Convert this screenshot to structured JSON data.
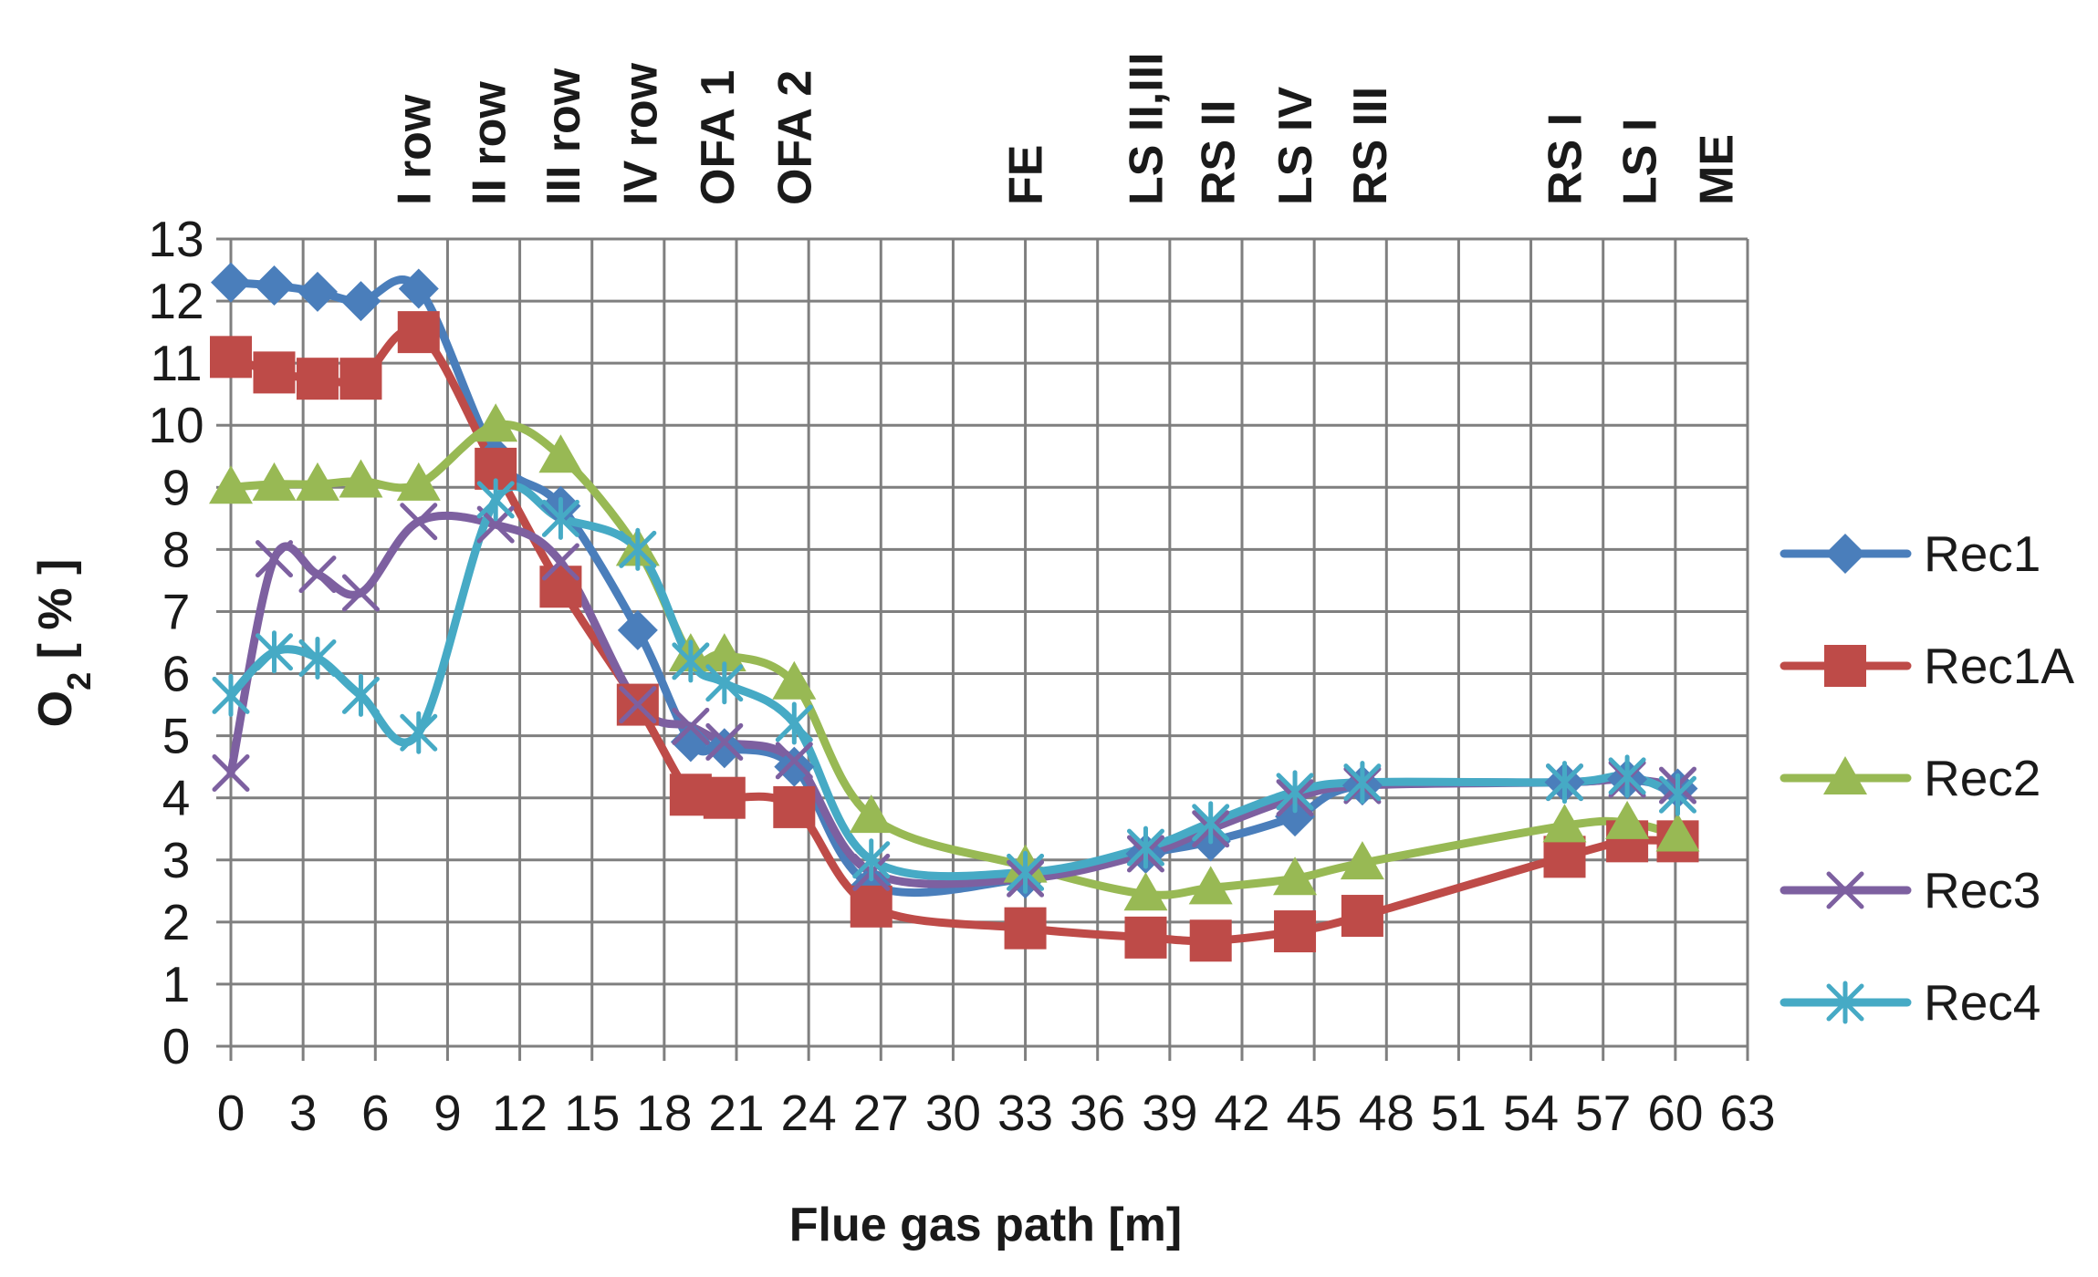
{
  "chart_data": {
    "type": "line",
    "title": "",
    "xlabel": "Flue gas path [m]",
    "ylabel": "O2 [ % ]",
    "ylabel_main": "O",
    "ylabel_sub": "2",
    "ylabel_rest": " [ % ]",
    "xlim": [
      0,
      63
    ],
    "ylim": [
      0,
      13
    ],
    "x_ticks": [
      0,
      3,
      6,
      9,
      12,
      15,
      18,
      21,
      24,
      27,
      30,
      33,
      36,
      39,
      42,
      45,
      48,
      51,
      54,
      57,
      60,
      63
    ],
    "y_ticks": [
      0,
      1,
      2,
      3,
      4,
      5,
      6,
      7,
      8,
      9,
      10,
      11,
      12,
      13
    ],
    "grid": true,
    "legend_position": "right",
    "annotations": [
      {
        "label": "I row",
        "x": 7.6
      },
      {
        "label": "II row",
        "x": 10.7
      },
      {
        "label": "III row",
        "x": 13.8
      },
      {
        "label": "IV row",
        "x": 17.0
      },
      {
        "label": "OFA 1",
        "x": 20.2
      },
      {
        "label": "OFA 2",
        "x": 23.4
      },
      {
        "label": "FE",
        "x": 33.0
      },
      {
        "label": "LS II,III",
        "x": 38.0
      },
      {
        "label": "RS II",
        "x": 41.0
      },
      {
        "label": "LS IV",
        "x": 44.2
      },
      {
        "label": "RS III",
        "x": 47.3
      },
      {
        "label": "RS I",
        "x": 55.4
      },
      {
        "label": "LS I",
        "x": 58.5
      },
      {
        "label": "ME",
        "x": 61.7
      }
    ],
    "series": [
      {
        "name": "Rec1",
        "color": "#4a7ebb",
        "marker": "diamond",
        "x": [
          0,
          1.8,
          3.6,
          5.4,
          7.8,
          11,
          13.7,
          16.9,
          19.1,
          20.5,
          23.4,
          26.6,
          33.0,
          38.0,
          40.7,
          44.2,
          47.0,
          55.4,
          58.0,
          60.1
        ],
        "y": [
          12.3,
          12.25,
          12.15,
          12.0,
          12.2,
          9.5,
          8.7,
          6.7,
          4.9,
          4.8,
          4.5,
          2.6,
          2.7,
          3.1,
          3.3,
          3.7,
          4.2,
          4.25,
          4.3,
          4.15
        ]
      },
      {
        "name": "Rec1A",
        "color": "#be4b48",
        "marker": "square",
        "x": [
          0,
          1.8,
          3.6,
          5.4,
          7.8,
          11,
          13.7,
          16.9,
          19.1,
          20.5,
          23.4,
          26.6,
          33.0,
          38.0,
          40.7,
          44.2,
          47.0,
          55.4,
          58.0,
          60.1
        ],
        "y": [
          11.1,
          10.85,
          10.75,
          10.75,
          11.5,
          9.3,
          7.4,
          5.5,
          4.05,
          4.0,
          3.85,
          2.25,
          1.9,
          1.75,
          1.7,
          1.85,
          2.1,
          3.05,
          3.3,
          3.3
        ]
      },
      {
        "name": "Rec2",
        "color": "#98b954",
        "marker": "triangle",
        "x": [
          0,
          1.8,
          3.6,
          5.4,
          7.8,
          11,
          13.7,
          16.9,
          19.1,
          20.5,
          23.4,
          26.6,
          33.0,
          38.0,
          40.7,
          44.2,
          47.0,
          55.4,
          58.0,
          60.1
        ],
        "y": [
          9.0,
          9.05,
          9.05,
          9.1,
          9.05,
          10.0,
          9.5,
          8.0,
          6.3,
          6.3,
          5.85,
          3.7,
          2.9,
          2.45,
          2.55,
          2.7,
          2.95,
          3.55,
          3.6,
          3.4
        ]
      },
      {
        "name": "Rec3",
        "color": "#7d60a0",
        "marker": "x",
        "x": [
          0,
          1.8,
          3.6,
          5.4,
          7.8,
          11,
          13.7,
          16.9,
          19.1,
          20.5,
          23.4,
          26.6,
          33.0,
          38.0,
          40.7,
          44.2,
          47.0,
          55.4,
          58.0,
          60.1
        ],
        "y": [
          4.4,
          7.85,
          7.6,
          7.3,
          8.45,
          8.4,
          7.8,
          5.5,
          5.15,
          4.9,
          4.6,
          2.8,
          2.7,
          3.1,
          3.5,
          4.0,
          4.2,
          4.25,
          4.3,
          4.2
        ]
      },
      {
        "name": "Rec4",
        "color": "#46aac5",
        "marker": "star",
        "x": [
          0,
          1.8,
          3.6,
          5.4,
          7.8,
          11,
          13.7,
          16.9,
          19.1,
          20.5,
          23.4,
          26.6,
          33.0,
          38.0,
          40.7,
          44.2,
          47.0,
          55.4,
          58.0,
          60.1
        ],
        "y": [
          5.65,
          6.35,
          6.25,
          5.65,
          5.05,
          8.8,
          8.5,
          8.0,
          6.2,
          5.85,
          5.2,
          3.0,
          2.8,
          3.2,
          3.6,
          4.1,
          4.25,
          4.25,
          4.35,
          4.05
        ]
      }
    ]
  }
}
